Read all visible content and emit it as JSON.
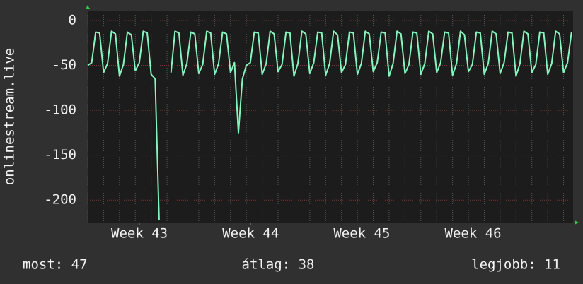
{
  "chart_data": {
    "type": "line",
    "y_label": "onlinestream.live",
    "x": [
      0,
      0.25,
      0.5,
      0.75,
      1,
      1.25,
      1.5,
      1.75,
      2,
      2.25,
      2.5,
      2.75,
      3,
      3.25,
      3.5,
      3.75,
      4,
      4.25,
      4.5,
      4.75,
      5,
      5.25,
      5.5,
      5.75,
      6,
      6.25,
      6.5,
      6.75,
      7,
      7.25,
      7.5,
      7.75,
      8,
      8.25,
      8.5,
      8.75,
      9,
      9.25,
      9.5,
      9.75,
      10,
      10.25,
      10.5,
      10.75,
      11,
      11.25,
      11.5,
      11.75,
      12,
      12.25,
      12.5,
      12.75,
      13,
      13.25,
      13.5,
      13.75,
      14,
      14.25,
      14.5,
      14.75,
      15,
      15.25,
      15.5,
      15.75,
      16,
      16.25,
      16.5,
      16.75,
      17,
      17.25,
      17.5,
      17.75,
      18,
      18.25,
      18.5,
      18.75,
      19,
      19.25,
      19.5,
      19.75,
      20,
      20.25,
      20.5,
      20.75,
      21,
      21.25,
      21.5,
      21.75,
      22,
      22.25,
      22.5,
      22.75,
      23,
      23.25,
      23.5,
      23.75,
      24,
      24.25,
      24.5,
      24.75,
      25,
      25.25,
      25.5,
      25.75,
      26,
      26.25,
      26.5,
      26.75,
      27,
      27.25,
      27.5,
      27.75,
      28,
      28.25,
      28.5,
      28.75,
      29,
      29.25,
      29.5,
      29.75,
      30,
      30.25,
      30.5
    ],
    "series": [
      {
        "color": "#86f5bd",
        "values": [
          -50,
          -47,
          -13,
          -14,
          -58,
          -48,
          -12,
          -15,
          -62,
          -49,
          -13,
          -16,
          -56,
          -47,
          -12,
          -14,
          -60,
          -65,
          -222,
          null,
          null,
          -58,
          -12,
          -14,
          -61,
          -48,
          -13,
          -15,
          -59,
          -49,
          -12,
          -14,
          -60,
          -48,
          -13,
          -15,
          -58,
          -47,
          -125,
          -65,
          -50,
          -47,
          -13,
          -14,
          -60,
          -48,
          -12,
          -15,
          -57,
          -49,
          -13,
          -14,
          -62,
          -48,
          -12,
          -15,
          -59,
          -47,
          -13,
          -14,
          -61,
          -48,
          -12,
          -16,
          -58,
          -49,
          -13,
          -14,
          -60,
          -48,
          -12,
          -15,
          -57,
          -47,
          -13,
          -14,
          -62,
          -48,
          -12,
          -15,
          -59,
          -49,
          -13,
          -14,
          -60,
          -48,
          -12,
          -15,
          -58,
          -47,
          -13,
          -14,
          -61,
          -48,
          -12,
          -16,
          -57,
          -49,
          -13,
          -14,
          -60,
          -48,
          -12,
          -15,
          -59,
          -47,
          -13,
          -14,
          -62,
          -48,
          -12,
          -15,
          -58,
          -49,
          -13,
          -14,
          -60,
          -48,
          -12,
          -15,
          -58,
          -47,
          -13
        ]
      }
    ],
    "xlim": [
      0,
      30.6
    ],
    "xticks": [
      {
        "value": 3.26,
        "label": "Week 43"
      },
      {
        "value": 10.27,
        "label": "Week 44"
      },
      {
        "value": 17.28,
        "label": "Week 45"
      },
      {
        "value": 24.29,
        "label": "Week 46"
      }
    ],
    "ylim": [
      -225,
      11
    ],
    "yticks": [
      0,
      -50,
      -100,
      -150,
      -200
    ],
    "grid": true,
    "stats": [
      "most: 47",
      "átlag: 38",
      "legjobb: 11"
    ]
  }
}
